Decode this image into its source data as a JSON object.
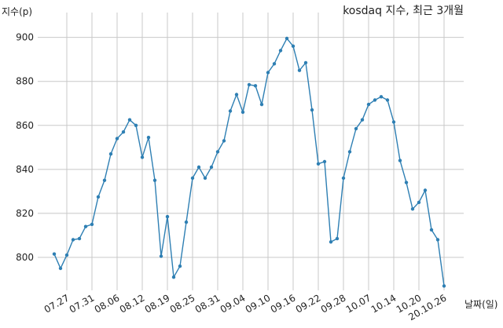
{
  "chart_data": {
    "type": "line",
    "title": "kosdaq 지수, 최근 3개월",
    "ylabel": "지수(p)",
    "xlabel": "날짜(일)",
    "ylim": [
      785,
      907
    ],
    "yticks": [
      800,
      820,
      840,
      860,
      880,
      900
    ],
    "grid": true,
    "line_color": "#2e7fb3",
    "xticks": [
      {
        "label": "07.27",
        "index": 2
      },
      {
        "label": "07.31",
        "index": 6
      },
      {
        "label": "08.06",
        "index": 10
      },
      {
        "label": "08.12",
        "index": 14
      },
      {
        "label": "08.19",
        "index": 18
      },
      {
        "label": "08.25",
        "index": 22
      },
      {
        "label": "08.31",
        "index": 26
      },
      {
        "label": "09.04",
        "index": 30
      },
      {
        "label": "09.10",
        "index": 34
      },
      {
        "label": "09.16",
        "index": 38
      },
      {
        "label": "09.22",
        "index": 42
      },
      {
        "label": "09.28",
        "index": 46
      },
      {
        "label": "10.07",
        "index": 50
      },
      {
        "label": "10.14",
        "index": 54
      },
      {
        "label": "10.20",
        "index": 58
      },
      {
        "label": "20.10.26",
        "index": 62
      }
    ],
    "values": [
      801.5,
      795.0,
      801.0,
      808.0,
      808.5,
      814.0,
      815.0,
      827.5,
      835.0,
      847.0,
      854.0,
      857.0,
      862.5,
      860.0,
      845.5,
      854.5,
      835.0,
      800.5,
      818.5,
      791.0,
      796.0,
      816.0,
      836.0,
      841.0,
      836.0,
      841.0,
      848.0,
      853.0,
      866.5,
      874.0,
      866.0,
      878.5,
      878.0,
      869.5,
      884.0,
      888.0,
      894.0,
      899.5,
      896.0,
      885.0,
      888.5,
      867.0,
      842.5,
      843.5,
      807.0,
      808.5,
      836.0,
      848.0,
      858.5,
      862.5,
      869.5,
      871.5,
      873.0,
      871.5,
      861.5,
      844.0,
      834.0,
      822.0,
      825.0,
      830.5,
      812.5,
      808.0,
      787.0
    ]
  }
}
